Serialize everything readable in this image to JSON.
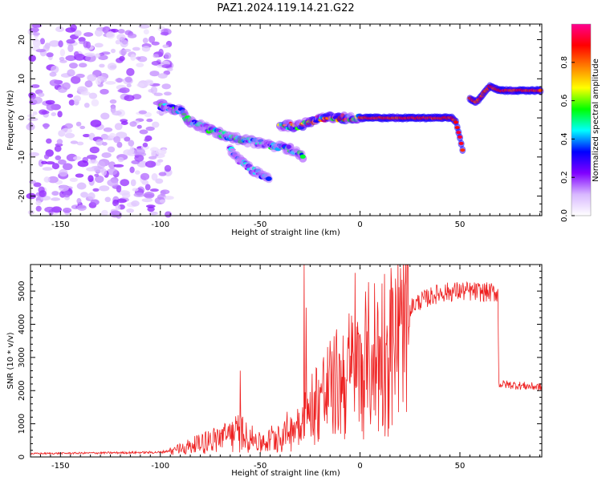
{
  "title": "PAZ1.2024.119.14.21.G22",
  "chart_data": [
    {
      "type": "heatmap",
      "xlabel": "Height of straight line (km)",
      "ylabel": "Frequency (Hz)",
      "xlim": [
        -165,
        91
      ],
      "ylim": [
        -25,
        24
      ],
      "x_ticks": [
        -150,
        -100,
        -50,
        0,
        50
      ],
      "y_ticks": [
        -20,
        -10,
        0,
        10,
        20
      ],
      "colorbar": {
        "label": "Normalized spectral amplitude",
        "range": [
          0,
          1
        ],
        "ticks": [
          0.0,
          0.2,
          0.4,
          0.6,
          0.8
        ],
        "colormap": [
          "#ffffff",
          "#d8b8ff",
          "#8000ff",
          "#0000ff",
          "#00ffff",
          "#00ff00",
          "#ffff00",
          "#ff8000",
          "#ff0000",
          "#ff0090"
        ]
      },
      "features": [
        {
          "name": "noise_region",
          "x_range": [
            -165,
            -95
          ],
          "f_range": [
            -25,
            24
          ],
          "amplitude": 0.12
        },
        {
          "name": "descending_trace",
          "points": [
            [
              -100,
              3
            ],
            [
              -90,
              2
            ],
            [
              -85,
              -1
            ],
            [
              -75,
              -3
            ],
            [
              -65,
              -5
            ],
            [
              -55,
              -6
            ],
            [
              -45,
              -7
            ],
            [
              -35,
              -8
            ],
            [
              -28,
              -10
            ]
          ],
          "amplitude": 0.3
        },
        {
          "name": "lower_branch",
          "points": [
            [
              -65,
              -8
            ],
            [
              -60,
              -11
            ],
            [
              -55,
              -13
            ],
            [
              -45,
              -16
            ]
          ],
          "amplitude": 0.25
        },
        {
          "name": "rising_segment",
          "points": [
            [
              -40,
              -2
            ],
            [
              -30,
              -2
            ],
            [
              -20,
              0
            ],
            [
              -10,
              0
            ],
            [
              0,
              0
            ]
          ],
          "amplitude": 0.5
        },
        {
          "name": "main_carrier",
          "points": [
            [
              0,
              0
            ],
            [
              20,
              0
            ],
            [
              40,
              0
            ],
            [
              46,
              0
            ],
            [
              48,
              -1
            ],
            [
              50,
              -5
            ],
            [
              52,
              -10
            ]
          ],
          "amplitude": 0.95
        },
        {
          "name": "upper_carrier",
          "points": [
            [
              55,
              5
            ],
            [
              58,
              4
            ],
            [
              60,
              5
            ],
            [
              63,
              7
            ],
            [
              65,
              8
            ],
            [
              70,
              7
            ],
            [
              91,
              7
            ]
          ],
          "amplitude": 0.95
        }
      ]
    },
    {
      "type": "line",
      "xlabel": "Height of straight line (km)",
      "ylabel": "SNR (10 * v/v)",
      "xlim": [
        -165,
        91
      ],
      "ylim": [
        0,
        5800
      ],
      "x_ticks": [
        -150,
        -100,
        -50,
        0,
        50
      ],
      "y_ticks": [
        0,
        1000,
        2000,
        3000,
        4000,
        5000
      ],
      "series_color": "#ee2020",
      "x_step": 0.25,
      "envelope": [
        {
          "x": -165,
          "y": 100
        },
        {
          "x": -100,
          "y": 140
        },
        {
          "x": -90,
          "y": 250
        },
        {
          "x": -80,
          "y": 450
        },
        {
          "x": -70,
          "y": 650
        },
        {
          "x": -60,
          "y": 800
        },
        {
          "x": -50,
          "y": 450
        },
        {
          "x": -40,
          "y": 700
        },
        {
          "x": -30,
          "y": 1300
        },
        {
          "x": -20,
          "y": 2100
        },
        {
          "x": -10,
          "y": 2700
        },
        {
          "x": 0,
          "y": 3300
        },
        {
          "x": 10,
          "y": 3800
        },
        {
          "x": 20,
          "y": 4300
        },
        {
          "x": 30,
          "y": 4700
        },
        {
          "x": 40,
          "y": 4950
        },
        {
          "x": 50,
          "y": 5000
        },
        {
          "x": 69,
          "y": 4950
        },
        {
          "x": 69.5,
          "y": 2200
        },
        {
          "x": 91,
          "y": 2100
        }
      ],
      "spikes": [
        {
          "x": -60,
          "y": 2600
        },
        {
          "x": -28,
          "y": 5800
        },
        {
          "x": -27,
          "y": 4500
        },
        {
          "x": -15,
          "y": 3500
        },
        {
          "x": -2.5,
          "y": 5550
        }
      ]
    }
  ]
}
